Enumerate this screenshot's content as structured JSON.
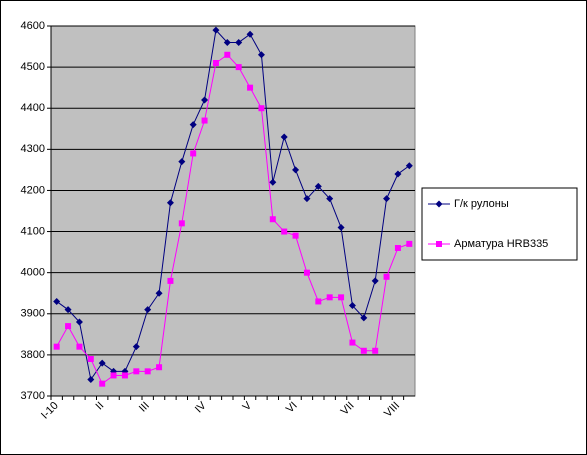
{
  "chart_data": {
    "type": "line",
    "categories": [
      "I-10",
      null,
      null,
      null,
      "II",
      null,
      null,
      null,
      "III",
      null,
      null,
      null,
      null,
      "IV",
      null,
      null,
      null,
      "V",
      null,
      null,
      null,
      "VI",
      null,
      null,
      null,
      null,
      "VII",
      null,
      null,
      null,
      "VIII",
      null
    ],
    "series": [
      {
        "name": "Г/к рулоны",
        "color": "#000080",
        "marker": "diamond",
        "values": [
          3930,
          3910,
          3880,
          3740,
          3780,
          3760,
          3760,
          3820,
          3910,
          3950,
          4170,
          4270,
          4360,
          4420,
          4590,
          4560,
          4560,
          4580,
          4530,
          4220,
          4330,
          4250,
          4180,
          4210,
          4180,
          4110,
          3920,
          3890,
          3980,
          4180,
          4240,
          4260
        ]
      },
      {
        "name": "Арматура HRB335",
        "color": "#ff00ff",
        "marker": "square",
        "values": [
          3820,
          3870,
          3820,
          3790,
          3730,
          3750,
          3750,
          3760,
          3760,
          3770,
          3980,
          4120,
          4290,
          4370,
          4510,
          4530,
          4500,
          4450,
          4400,
          4130,
          4100,
          4090,
          4000,
          3930,
          3940,
          3940,
          3830,
          3810,
          3810,
          3990,
          4060,
          4070
        ]
      }
    ],
    "ylim": [
      3700,
      4600
    ],
    "yticks": [
      3700,
      3800,
      3900,
      4000,
      4100,
      4200,
      4300,
      4400,
      4500,
      4600
    ],
    "grid": true,
    "legend": "right",
    "plot_background": "#c0c0c0"
  }
}
